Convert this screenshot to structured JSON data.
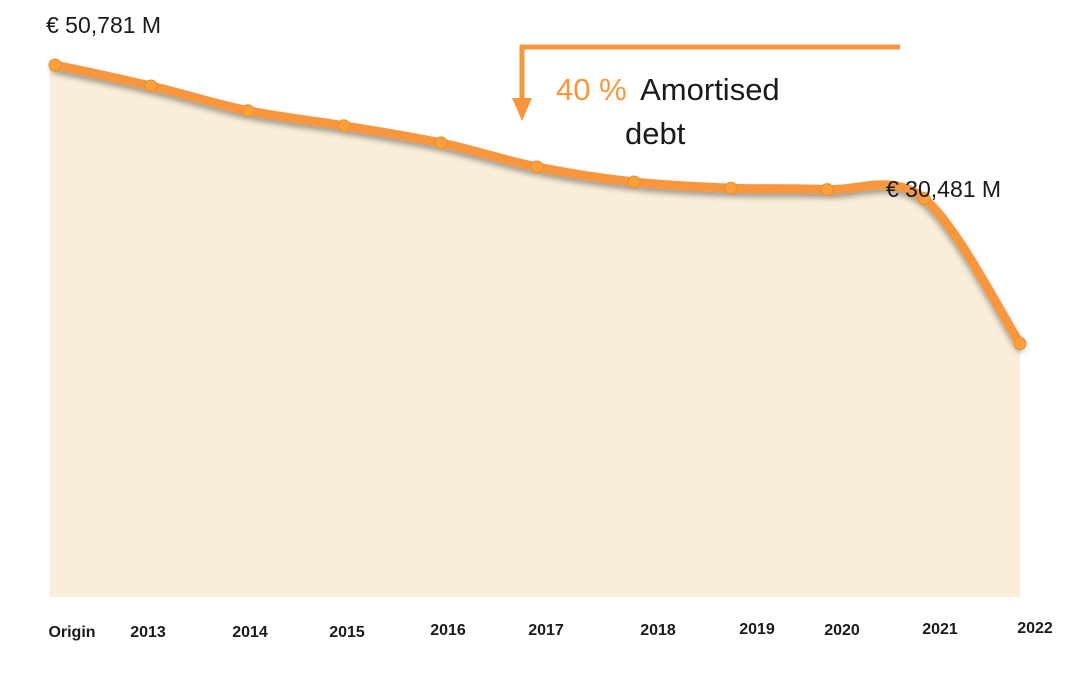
{
  "colors": {
    "line": "#F7963E",
    "marker": "#FBA03A",
    "area": "#FAEEDA",
    "annotation": "#F7963E",
    "text": "#1a1a1a"
  },
  "chart_data": {
    "type": "area",
    "title": "",
    "xlabel": "",
    "ylabel": "",
    "categories": [
      "Origin",
      "2013",
      "2014",
      "2015",
      "2016",
      "2017",
      "2018",
      "2019",
      "2020",
      "2021",
      "2022"
    ],
    "series": [
      {
        "values": [
          50781,
          49250,
          47450,
          46350,
          45100,
          43350,
          42250,
          41800,
          41700,
          41050,
          30481
        ]
      }
    ],
    "ylim": [
      0,
      50781
    ],
    "grid": false,
    "legend": "none",
    "value_labels": {
      "start": "€ 50,781 M",
      "end": "€ 30,481 M"
    },
    "annotation": {
      "percent": "40 %",
      "text_line1": "Amortised",
      "text_line2": "debt"
    }
  }
}
